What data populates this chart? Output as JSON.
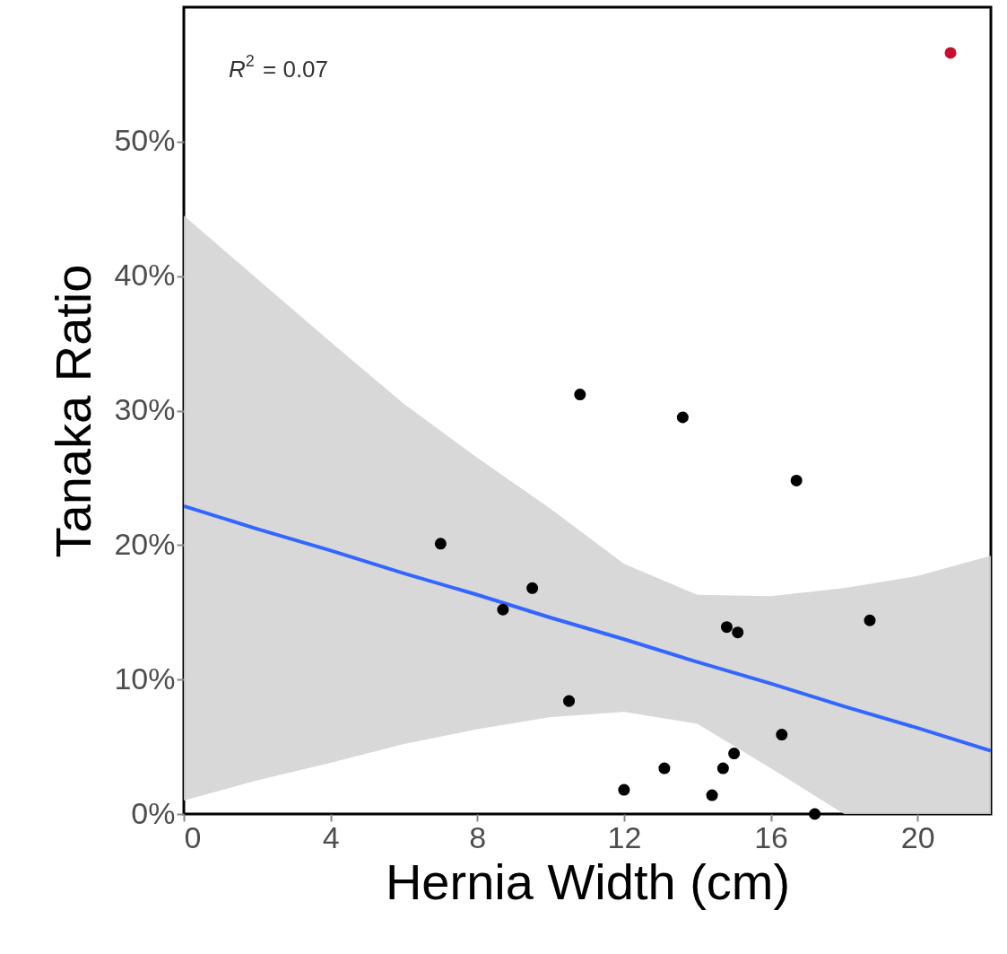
{
  "chart_data": {
    "type": "scatter",
    "xlabel": "Hernia Width (cm)",
    "ylabel": "Tanaka Ratio",
    "xlim": [
      0,
      22
    ],
    "xticks": [
      0,
      4,
      8,
      12,
      16,
      20
    ],
    "ylim": [
      0,
      60
    ],
    "yticks": [
      {
        "value": 0,
        "label": "0%"
      },
      {
        "value": 10,
        "label": "10%"
      },
      {
        "value": 20,
        "label": "20%"
      },
      {
        "value": 30,
        "label": "30%"
      },
      {
        "value": 40,
        "label": "40%"
      },
      {
        "value": 50,
        "label": "50%"
      }
    ],
    "marker": "circle",
    "grid": false,
    "annotations": [
      "R$^{2}$ = 0.07"
    ],
    "series": [
      {
        "type": "line",
        "marker": "none",
        "color": "#3366ff",
        "x": [
          0,
          2,
          4,
          6,
          8,
          10,
          12,
          14,
          16,
          18,
          20,
          22
        ],
        "values": [
          22.9,
          21.2,
          19.6,
          17.9,
          16.3,
          14.6,
          13.0,
          11.3,
          9.7,
          8.0,
          6.4,
          4.7
        ],
        "lower": [
          1.0,
          2.5,
          3.8,
          5.2,
          6.3,
          7.2,
          7.6,
          6.7,
          3.4,
          0,
          0,
          0
        ],
        "upper": [
          44.5,
          39.8,
          35.1,
          30.5,
          26.5,
          22.7,
          18.6,
          16.3,
          16.2,
          16.8,
          17.7,
          19.2
        ]
      },
      {
        "color": "#000000",
        "x": [
          10.8,
          13.6,
          16.7,
          7.0,
          9.5,
          8.7,
          14.8,
          15.1,
          18.7,
          10.5,
          16.3,
          15.0,
          13.1,
          14.7,
          12.0,
          14.4,
          17.2
        ],
        "values": [
          31.2,
          29.5,
          24.8,
          20.1,
          16.8,
          15.2,
          13.9,
          13.5,
          14.4,
          8.4,
          5.9,
          4.5,
          3.4,
          3.4,
          1.8,
          1.4,
          0
        ]
      },
      {
        "color": "#c8102e",
        "x": [
          20.9
        ],
        "values": [
          56.6
        ]
      }
    ]
  }
}
